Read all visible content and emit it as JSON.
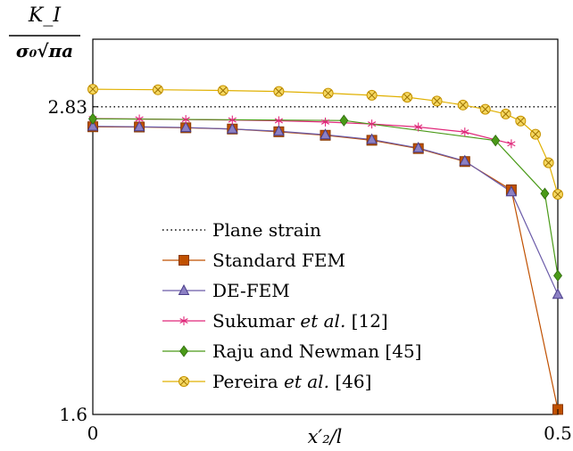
{
  "chart_data": {
    "type": "line",
    "title": "",
    "xlabel": "x′₂/l",
    "ylabel_top": "K_I",
    "ylabel_bottom": "σ₀√πa",
    "xlim": [
      0,
      0.5
    ],
    "ylim": [
      1.6,
      3.1
    ],
    "x_ticks": [
      {
        "value": 0,
        "label": "0"
      },
      {
        "value": 0.5,
        "label": "0.5"
      }
    ],
    "y_ticks": [
      {
        "value": 1.6,
        "label": "1.6"
      },
      {
        "value": 2.83,
        "label": "2.83"
      }
    ],
    "grid": false,
    "legend_position": "lower-left",
    "series": [
      {
        "name": "Plane strain",
        "color": "#000000",
        "style": "dotted",
        "marker": "none",
        "x": [
          0,
          0.5
        ],
        "y": [
          2.83,
          2.83
        ]
      },
      {
        "name": "Standard FEM",
        "color": "#c05000",
        "style": "solid",
        "marker": "square",
        "x": [
          0,
          0.05,
          0.1,
          0.15,
          0.2,
          0.25,
          0.3,
          0.35,
          0.4,
          0.45,
          0.5
        ],
        "y": [
          2.75,
          2.749,
          2.746,
          2.741,
          2.73,
          2.716,
          2.696,
          2.663,
          2.611,
          2.498,
          1.62
        ]
      },
      {
        "name": "DE-FEM",
        "color": "#6a5aa8",
        "style": "solid",
        "marker": "triangle",
        "x": [
          0,
          0.05,
          0.1,
          0.15,
          0.2,
          0.25,
          0.3,
          0.35,
          0.4,
          0.45,
          0.5
        ],
        "y": [
          2.752,
          2.75,
          2.747,
          2.741,
          2.732,
          2.718,
          2.699,
          2.665,
          2.613,
          2.49,
          2.08
        ]
      },
      {
        "name": "Sukumar et al. [12]",
        "color": "#e0287a",
        "style": "solid",
        "marker": "star",
        "x": [
          0,
          0.05,
          0.1,
          0.15,
          0.2,
          0.25,
          0.3,
          0.35,
          0.4,
          0.45
        ],
        "y": [
          2.783,
          2.781,
          2.779,
          2.777,
          2.774,
          2.769,
          2.761,
          2.749,
          2.729,
          2.682
        ]
      },
      {
        "name": "Raju and Newman [45]",
        "color": "#4a9a18",
        "style": "solid",
        "marker": "diamond",
        "x": [
          0,
          0.27,
          0.433,
          0.486,
          0.5
        ],
        "y": [
          2.782,
          2.775,
          2.695,
          2.483,
          2.155
        ]
      },
      {
        "name": "Pereira et al. [46]",
        "color": "#e0b000",
        "style": "solid",
        "marker": "circle-x",
        "x": [
          0,
          0.07,
          0.14,
          0.2,
          0.253,
          0.3,
          0.338,
          0.37,
          0.398,
          0.422,
          0.444,
          0.46,
          0.476,
          0.49,
          0.5
        ],
        "y": [
          2.9,
          2.898,
          2.895,
          2.891,
          2.884,
          2.876,
          2.868,
          2.853,
          2.837,
          2.82,
          2.801,
          2.773,
          2.72,
          2.606,
          2.48
        ]
      }
    ]
  }
}
